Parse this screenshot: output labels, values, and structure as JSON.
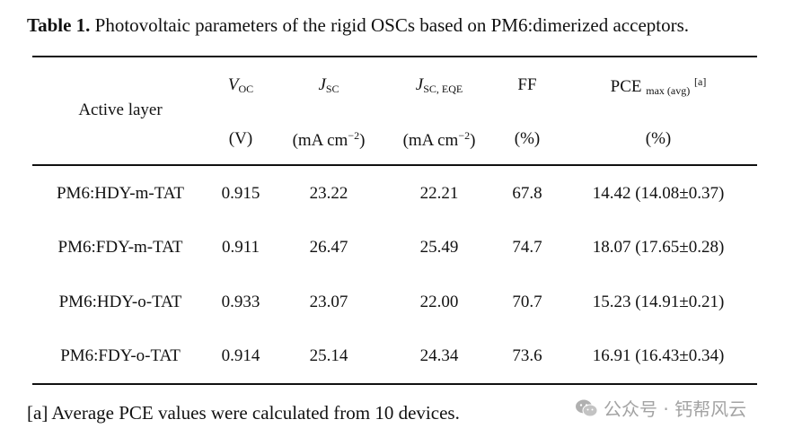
{
  "caption": {
    "label": "Table 1.",
    "text": " Photovoltaic parameters of the rigid OSCs based on PM6:dimerized acceptors."
  },
  "headers": {
    "active_layer": "Active layer",
    "voc": {
      "symbol": "V",
      "sub": "OC",
      "unit": "(V)"
    },
    "jsc": {
      "symbol": "J",
      "sub": "SC",
      "unit_pre": "(mA cm",
      "unit_sup": "−2",
      "unit_post": ")"
    },
    "jsc_eqe": {
      "symbol": "J",
      "sub": "SC, EQE",
      "unit_pre": "(mA cm",
      "unit_sup": "−2",
      "unit_post": ")"
    },
    "ff": {
      "symbol": "FF",
      "unit": "(%)"
    },
    "pce": {
      "symbol": "PCE",
      "sub": "max (avg)",
      "sup": "[a]",
      "unit": "(%)"
    }
  },
  "rows": [
    {
      "layer": "PM6:HDY-m-TAT",
      "voc": "0.915",
      "jsc": "23.22",
      "jsc_eqe": "22.21",
      "ff": "67.8",
      "pce": "14.42 (14.08±0.37)"
    },
    {
      "layer": "PM6:FDY-m-TAT",
      "voc": "0.911",
      "jsc": "26.47",
      "jsc_eqe": "25.49",
      "ff": "74.7",
      "pce": "18.07 (17.65±0.28)"
    },
    {
      "layer": "PM6:HDY-o-TAT",
      "voc": "0.933",
      "jsc": "23.07",
      "jsc_eqe": "22.00",
      "ff": "70.7",
      "pce": "15.23 (14.91±0.21)"
    },
    {
      "layer": "PM6:FDY-o-TAT",
      "voc": "0.914",
      "jsc": "25.14",
      "jsc_eqe": "24.34",
      "ff": "73.6",
      "pce": "16.91 (16.43±0.34)"
    }
  ],
  "footnote": "[a] Average PCE values were calculated from 10 devices.",
  "watermark": {
    "text": "公众号 · 钙帮风云",
    "icon": "wechat-icon"
  }
}
